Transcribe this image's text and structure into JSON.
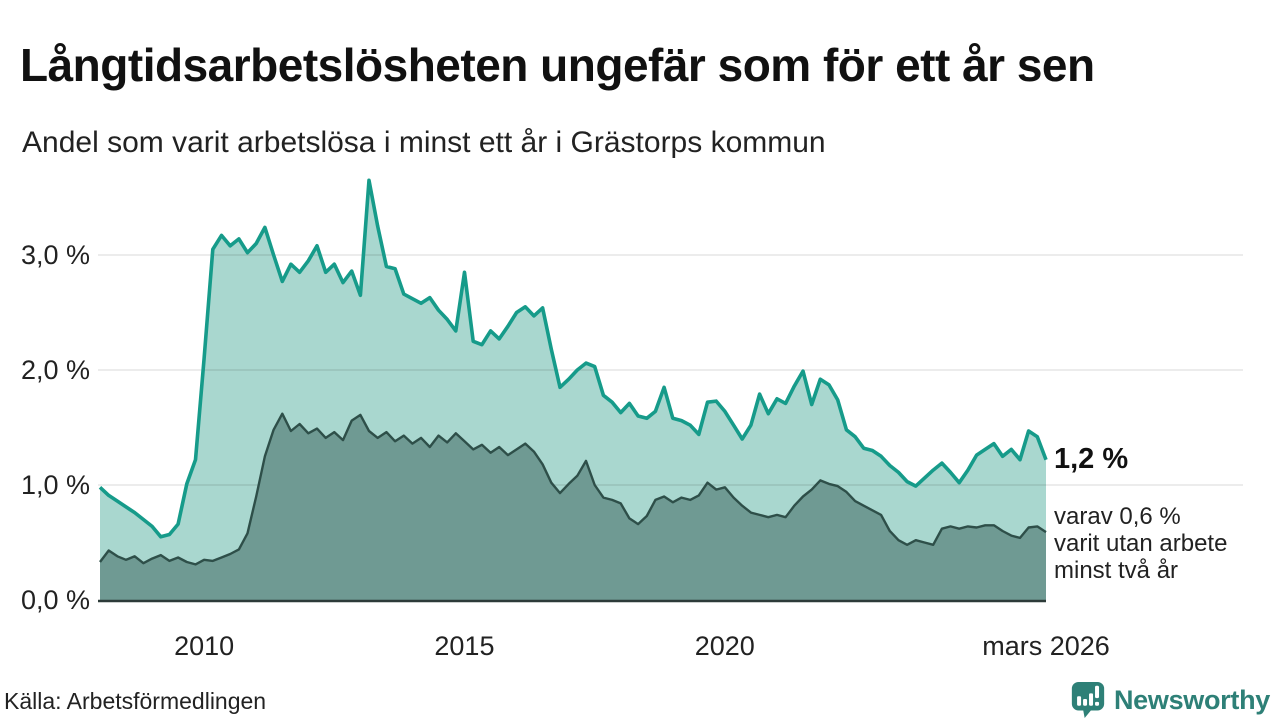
{
  "header": {
    "title": "Långtidsarbetslösheten ungefär som för ett år sen",
    "subtitle": "Andel som varit arbetslösa i minst ett år i Grästorps kommun"
  },
  "annotation": {
    "value": "1,2 %",
    "lines": [
      "varav 0,6 %",
      "varit utan arbete",
      "minst två år"
    ]
  },
  "footer": {
    "source": "Källa: Arbetsförmedlingen",
    "brand": "Newsworthy",
    "brand_icon": "newsworthy-pin-barchart-icon"
  },
  "colors": {
    "accent_teal": "#169b8a",
    "area_light": "#a9d7cf",
    "area_dark": "#6f9a93",
    "line_dark": "#2e4f49",
    "axis_line": "#2d3b39",
    "grid": "rgba(0,0,0,0.10)",
    "brand_teal": "#2e8077"
  },
  "chart_data": {
    "type": "area",
    "title": "Andel som varit arbetslösa i minst ett år i Grästorps kommun",
    "unit": "%",
    "x_start_year": 2008.0,
    "x_end_year": 2026.17,
    "x_step_years": 0.1667,
    "xlim": [
      2008.0,
      2026.17
    ],
    "ylim": [
      0,
      3.8
    ],
    "grid": true,
    "x_ticks": [
      {
        "year": 2010,
        "label": "2010"
      },
      {
        "year": 2015,
        "label": "2015"
      },
      {
        "year": 2020,
        "label": "2020"
      },
      {
        "year": 2026.17,
        "label": "mars 2026"
      }
    ],
    "y_ticks": [
      {
        "value": 0,
        "label": "0,0 %"
      },
      {
        "value": 1,
        "label": "1,0 %"
      },
      {
        "value": 2,
        "label": "2,0 %"
      },
      {
        "value": 3,
        "label": "3,0 %"
      }
    ],
    "series": [
      {
        "name": "Andel arbetslösa i minst ett år",
        "color": "#169b8a",
        "fill": "#a9d7cf",
        "latest_label": "1,2 %",
        "values": [
          0.98,
          0.91,
          0.86,
          0.81,
          0.76,
          0.7,
          0.64,
          0.55,
          0.57,
          0.66,
          1.01,
          1.22,
          2.1,
          3.05,
          3.17,
          3.08,
          3.14,
          3.02,
          3.1,
          3.24,
          3.0,
          2.77,
          2.92,
          2.85,
          2.95,
          3.08,
          2.85,
          2.92,
          2.76,
          2.86,
          2.65,
          3.65,
          3.25,
          2.9,
          2.88,
          2.66,
          2.62,
          2.58,
          2.63,
          2.52,
          2.44,
          2.34,
          2.85,
          2.25,
          2.22,
          2.34,
          2.27,
          2.38,
          2.5,
          2.55,
          2.47,
          2.54,
          2.18,
          1.85,
          1.92,
          2.0,
          2.06,
          2.03,
          1.78,
          1.72,
          1.63,
          1.71,
          1.6,
          1.58,
          1.64,
          1.85,
          1.58,
          1.56,
          1.52,
          1.44,
          1.72,
          1.73,
          1.64,
          1.52,
          1.4,
          1.52,
          1.79,
          1.62,
          1.75,
          1.71,
          1.86,
          1.99,
          1.7,
          1.92,
          1.87,
          1.74,
          1.48,
          1.42,
          1.32,
          1.3,
          1.25,
          1.17,
          1.11,
          1.03,
          0.99,
          1.06,
          1.13,
          1.19,
          1.11,
          1.02,
          1.13,
          1.26,
          1.31,
          1.36,
          1.25,
          1.31,
          1.22,
          1.47,
          1.42,
          1.22
        ]
      },
      {
        "name": "Andel arbetslösa i minst två år",
        "color": "#2e4f49",
        "fill": "#6f9a93",
        "latest_label": "0,6 %",
        "values": [
          0.33,
          0.43,
          0.38,
          0.35,
          0.38,
          0.32,
          0.36,
          0.39,
          0.34,
          0.37,
          0.33,
          0.31,
          0.35,
          0.34,
          0.37,
          0.4,
          0.44,
          0.58,
          0.9,
          1.25,
          1.48,
          1.62,
          1.47,
          1.53,
          1.45,
          1.49,
          1.41,
          1.46,
          1.39,
          1.56,
          1.61,
          1.47,
          1.41,
          1.46,
          1.38,
          1.43,
          1.36,
          1.41,
          1.33,
          1.43,
          1.37,
          1.45,
          1.38,
          1.31,
          1.35,
          1.28,
          1.33,
          1.26,
          1.31,
          1.36,
          1.29,
          1.18,
          1.02,
          0.93,
          1.01,
          1.08,
          1.21,
          1.0,
          0.89,
          0.87,
          0.84,
          0.71,
          0.66,
          0.73,
          0.87,
          0.9,
          0.85,
          0.89,
          0.87,
          0.91,
          1.02,
          0.96,
          0.98,
          0.89,
          0.82,
          0.76,
          0.74,
          0.72,
          0.74,
          0.72,
          0.82,
          0.9,
          0.96,
          1.04,
          1.01,
          0.99,
          0.94,
          0.86,
          0.82,
          0.78,
          0.74,
          0.6,
          0.52,
          0.48,
          0.52,
          0.5,
          0.48,
          0.62,
          0.64,
          0.62,
          0.64,
          0.63,
          0.65,
          0.65,
          0.6,
          0.56,
          0.54,
          0.63,
          0.64,
          0.59
        ]
      }
    ]
  }
}
